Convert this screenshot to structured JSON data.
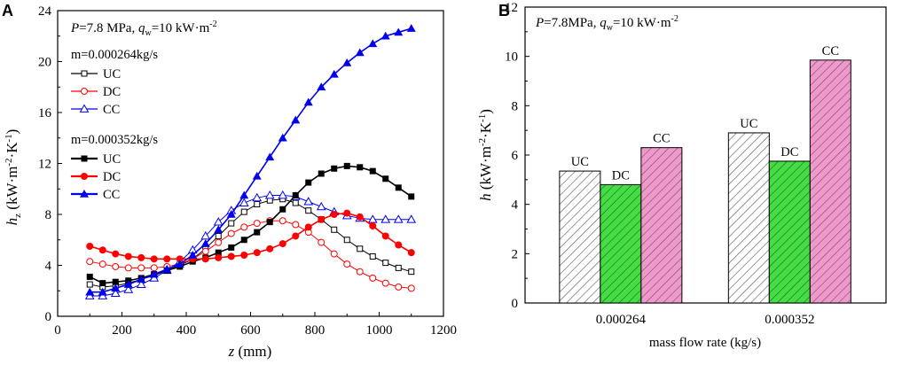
{
  "panels": {
    "a": {
      "label": "A",
      "condition_parts": {
        "p_sym": "P",
        "p_val": "=7.8 MPa, ",
        "q_sym": "q",
        "q_sub": "w",
        "q_val": "=10 kW·m",
        "q_exp": "-2"
      },
      "ylabel_parts": {
        "sym": "h",
        "sub": "z",
        "unit": " (kW·m",
        "exp1": "-2",
        "mid": "·K",
        "exp2": "-1",
        "close": ")"
      },
      "xlabel_parts": {
        "sym": "z",
        "unit": " (mm)"
      },
      "group1_label": "m=0.000264kg/s",
      "group2_label": "m=0.000352kg/s",
      "legend": [
        "UC",
        "DC",
        "CC",
        "UC",
        "DC",
        "CC"
      ],
      "xticks": [
        "0",
        "200",
        "400",
        "600",
        "800",
        "1000",
        "1200"
      ],
      "yticks": [
        "0",
        "4",
        "8",
        "12",
        "16",
        "20",
        "24"
      ]
    },
    "b": {
      "label": "B",
      "condition_parts": {
        "p_sym": "P",
        "p_val": "=7.8MPa, ",
        "q_sym": "q",
        "q_sub": "w",
        "q_val": "=10 kW·m",
        "q_exp": "-2"
      },
      "ylabel_parts": {
        "sym": "h",
        "unit": " (kW·m",
        "exp1": "-2",
        "mid": "·K",
        "exp2": "-1",
        "close": ")"
      },
      "xlabel": "mass flow rate (kg/s)",
      "xticks": [
        "0.000264",
        "0.000352"
      ],
      "yticks": [
        "0",
        "2",
        "4",
        "6",
        "8",
        "10",
        "12"
      ]
    }
  },
  "colors": {
    "UC": "#000000",
    "DC": "#ff0000",
    "CC": "#0000ee",
    "bar_UC": "#ffffff",
    "bar_DC": "#44dd44",
    "bar_CC": "#ee99cc"
  },
  "chart_data": [
    {
      "type": "line",
      "title": "",
      "xlabel": "z (mm)",
      "ylabel": "h_z (kW·m^-2·K^-1)",
      "xlim": [
        0,
        1200
      ],
      "ylim": [
        0,
        24
      ],
      "x": [
        100,
        140,
        180,
        220,
        260,
        300,
        340,
        380,
        420,
        460,
        500,
        540,
        580,
        620,
        660,
        700,
        740,
        780,
        820,
        860,
        900,
        940,
        980,
        1020,
        1060,
        1100
      ],
      "series": [
        {
          "name": "UC",
          "flow": "0.000264",
          "marker": "open-square",
          "values": [
            2.5,
            2.3,
            2.4,
            2.6,
            2.9,
            3.2,
            3.6,
            4.0,
            4.5,
            5.3,
            6.3,
            7.3,
            8.2,
            8.8,
            9.1,
            9.2,
            8.9,
            8.3,
            7.6,
            6.8,
            6.0,
            5.3,
            4.7,
            4.2,
            3.8,
            3.5
          ]
        },
        {
          "name": "DC",
          "flow": "0.000264",
          "marker": "open-circle",
          "values": [
            4.3,
            4.1,
            3.9,
            3.8,
            3.8,
            3.8,
            3.9,
            4.1,
            4.5,
            5.1,
            5.8,
            6.5,
            7.0,
            7.3,
            7.5,
            7.5,
            7.2,
            6.6,
            5.8,
            4.9,
            4.1,
            3.5,
            3.0,
            2.6,
            2.3,
            2.2
          ]
        },
        {
          "name": "CC",
          "flow": "0.000264",
          "marker": "open-triangle",
          "values": [
            1.6,
            1.6,
            1.8,
            2.1,
            2.5,
            3.0,
            3.6,
            4.3,
            5.2,
            6.3,
            7.4,
            8.3,
            8.9,
            9.3,
            9.5,
            9.5,
            9.4,
            9.0,
            8.6,
            8.2,
            7.9,
            7.7,
            7.6,
            7.6,
            7.6,
            7.6
          ]
        },
        {
          "name": "UC",
          "flow": "0.000352",
          "marker": "filled-square",
          "values": [
            3.1,
            2.6,
            2.7,
            2.8,
            3.0,
            3.3,
            3.6,
            3.9,
            4.3,
            4.6,
            5.0,
            5.4,
            6.0,
            6.6,
            7.4,
            8.4,
            9.5,
            10.5,
            11.2,
            11.6,
            11.8,
            11.7,
            11.4,
            10.8,
            10.1,
            9.4
          ]
        },
        {
          "name": "DC",
          "flow": "0.000352",
          "marker": "filled-circle",
          "values": [
            5.5,
            5.2,
            4.9,
            4.7,
            4.6,
            4.5,
            4.5,
            4.5,
            4.5,
            4.5,
            4.6,
            4.7,
            4.8,
            5.0,
            5.3,
            5.7,
            6.3,
            7.0,
            7.6,
            8.0,
            8.1,
            7.8,
            7.1,
            6.3,
            5.6,
            5.0
          ]
        },
        {
          "name": "CC",
          "flow": "0.000352",
          "marker": "filled-triangle",
          "values": [
            1.9,
            1.9,
            2.2,
            2.5,
            2.9,
            3.3,
            3.7,
            4.1,
            4.8,
            5.7,
            6.8,
            8.0,
            9.5,
            11.0,
            12.5,
            14.0,
            15.4,
            16.8,
            18.0,
            19.0,
            19.9,
            20.7,
            21.4,
            22.0,
            22.3,
            22.6
          ]
        }
      ]
    },
    {
      "type": "bar",
      "title": "",
      "xlabel": "mass flow rate (kg/s)",
      "ylabel": "h (kW·m^-2·K^-1)",
      "ylim": [
        0,
        12
      ],
      "categories": [
        "0.000264",
        "0.000352"
      ],
      "series": [
        {
          "name": "UC",
          "values": [
            5.35,
            6.9
          ]
        },
        {
          "name": "DC",
          "values": [
            4.8,
            5.75
          ]
        },
        {
          "name": "CC",
          "values": [
            6.3,
            9.85
          ]
        }
      ]
    }
  ]
}
